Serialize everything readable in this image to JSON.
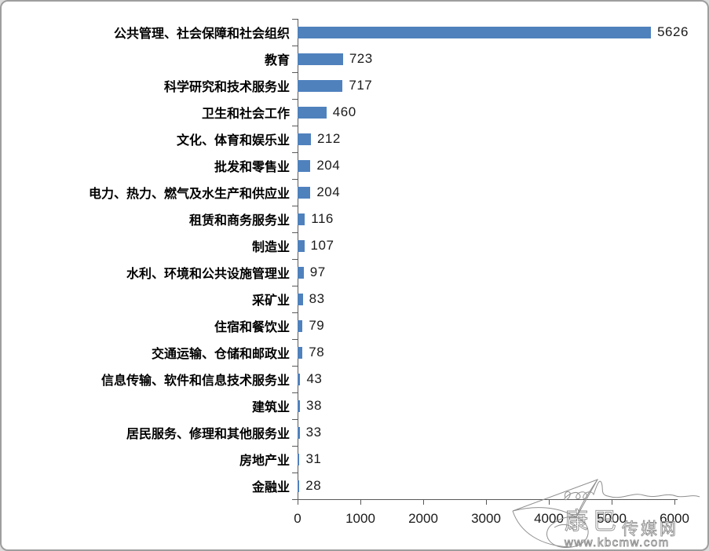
{
  "chart_data": {
    "type": "bar",
    "orientation": "horizontal",
    "title": "",
    "xlabel": "",
    "ylabel": "",
    "categories": [
      "公共管理、社会保障和社会组织",
      "教育",
      "科学研究和技术服务业",
      "卫生和社会工作",
      "文化、体育和娱乐业",
      "批发和零售业",
      "电力、热力、燃气及水生产和供应业",
      "租赁和商务服务业",
      "制造业",
      "水利、环境和公共设施管理业",
      "采矿业",
      "住宿和餐饮业",
      "交通运输、仓储和邮政业",
      "信息传输、软件和信息技术服务业",
      "建筑业",
      "居民服务、修理和其他服务业",
      "房地产业",
      "金融业"
    ],
    "values": [
      5626,
      723,
      717,
      460,
      212,
      204,
      204,
      116,
      107,
      97,
      83,
      79,
      78,
      43,
      38,
      33,
      31,
      28
    ],
    "data_labels": [
      "5626",
      "723",
      "717",
      "460",
      "212",
      "204",
      "204",
      "116",
      "107",
      "97",
      "83",
      "79",
      "78",
      "43",
      "38",
      "33",
      "31",
      "28"
    ],
    "xlim": [
      0,
      6000
    ],
    "x_ticks": [
      "0",
      "1000",
      "2000",
      "3000",
      "4000",
      "5000",
      "6000"
    ],
    "bar_color": "#4F81BD",
    "axis_color": "#595959",
    "grid": "off",
    "legend": "none"
  },
  "watermark": {
    "brand_large": "康巴",
    "brand_small": "传媒网",
    "url": "www.kbcmw.com"
  }
}
